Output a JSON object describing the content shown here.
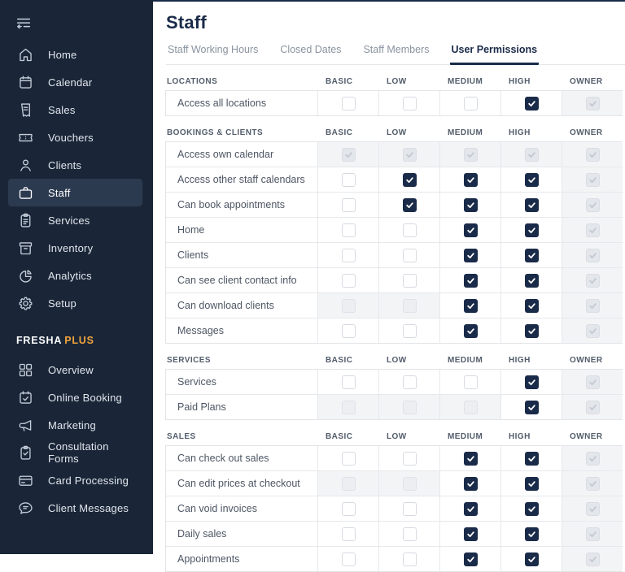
{
  "page_title": "Staff",
  "colors": {
    "sidebar_bg": "#1A2638",
    "sidebar_active_bg": "#2C3A50",
    "accent_navy": "#1A2B49",
    "plus_orange": "#F0A43C",
    "border_grey": "#E2E4E8",
    "disabled_cell_bg": "#F3F4F6"
  },
  "sidebar": {
    "collapse_icon": "collapse-sidebar-icon",
    "brand": {
      "name": "FRESHA",
      "suffix": "PLUS"
    },
    "main_items": [
      {
        "label": "Home",
        "icon": "home-icon",
        "active": false
      },
      {
        "label": "Calendar",
        "icon": "calendar-icon",
        "active": false
      },
      {
        "label": "Sales",
        "icon": "receipt-icon",
        "active": false
      },
      {
        "label": "Vouchers",
        "icon": "ticket-icon",
        "active": false
      },
      {
        "label": "Clients",
        "icon": "person-icon",
        "active": false
      },
      {
        "label": "Staff",
        "icon": "briefcase-icon",
        "active": true
      },
      {
        "label": "Services",
        "icon": "clipboard-list-icon",
        "active": false
      },
      {
        "label": "Inventory",
        "icon": "archive-box-icon",
        "active": false
      },
      {
        "label": "Analytics",
        "icon": "pie-chart-icon",
        "active": false
      },
      {
        "label": "Setup",
        "icon": "gear-icon",
        "active": false
      }
    ],
    "plus_items": [
      {
        "label": "Overview",
        "icon": "grid-icon",
        "active": false
      },
      {
        "label": "Online Booking",
        "icon": "calendar-check-icon",
        "active": false
      },
      {
        "label": "Marketing",
        "icon": "megaphone-icon",
        "active": false
      },
      {
        "label": "Consultation Forms",
        "icon": "clipboard-check-icon",
        "active": false
      },
      {
        "label": "Card Processing",
        "icon": "credit-card-icon",
        "active": false
      },
      {
        "label": "Client Messages",
        "icon": "chat-bubble-icon",
        "active": false
      }
    ]
  },
  "tabs": [
    {
      "label": "Staff Working Hours",
      "active": false
    },
    {
      "label": "Closed Dates",
      "active": false
    },
    {
      "label": "Staff Members",
      "active": false
    },
    {
      "label": "User Permissions",
      "active": true
    }
  ],
  "permission_levels": [
    "BASIC",
    "LOW",
    "MEDIUM",
    "HIGH",
    "OWNER"
  ],
  "sections": [
    {
      "title": "LOCATIONS",
      "rows": [
        {
          "label": "Access all locations",
          "states": [
            "unchecked",
            "unchecked",
            "unchecked",
            "checked",
            "disabled-checked"
          ]
        }
      ]
    },
    {
      "title": "BOOKINGS & CLIENTS",
      "rows": [
        {
          "label": "Access own calendar",
          "states": [
            "disabled-checked",
            "disabled-checked",
            "disabled-checked",
            "disabled-checked",
            "disabled-checked"
          ]
        },
        {
          "label": "Access other staff calendars",
          "states": [
            "unchecked",
            "checked",
            "checked",
            "checked",
            "disabled-checked"
          ]
        },
        {
          "label": "Can book appointments",
          "states": [
            "unchecked",
            "checked",
            "checked",
            "checked",
            "disabled-checked"
          ]
        },
        {
          "label": "Home",
          "states": [
            "unchecked",
            "unchecked",
            "checked",
            "checked",
            "disabled-checked"
          ]
        },
        {
          "label": "Clients",
          "states": [
            "unchecked",
            "unchecked",
            "checked",
            "checked",
            "disabled-checked"
          ]
        },
        {
          "label": "Can see client contact info",
          "states": [
            "unchecked",
            "unchecked",
            "checked",
            "checked",
            "disabled-checked"
          ]
        },
        {
          "label": "Can download clients",
          "states": [
            "disabled-unchecked",
            "disabled-unchecked",
            "checked",
            "checked",
            "disabled-checked"
          ]
        },
        {
          "label": "Messages",
          "states": [
            "unchecked",
            "unchecked",
            "checked",
            "checked",
            "disabled-checked"
          ]
        }
      ]
    },
    {
      "title": "SERVICES",
      "rows": [
        {
          "label": "Services",
          "states": [
            "unchecked",
            "unchecked",
            "unchecked",
            "checked",
            "disabled-checked"
          ]
        },
        {
          "label": "Paid Plans",
          "states": [
            "disabled-unchecked",
            "disabled-unchecked",
            "disabled-unchecked",
            "checked",
            "disabled-checked"
          ]
        }
      ]
    },
    {
      "title": "SALES",
      "rows": [
        {
          "label": "Can check out sales",
          "states": [
            "unchecked",
            "unchecked",
            "checked",
            "checked",
            "disabled-checked"
          ]
        },
        {
          "label": "Can edit prices at checkout",
          "states": [
            "disabled-unchecked",
            "disabled-unchecked",
            "checked",
            "checked",
            "disabled-checked"
          ]
        },
        {
          "label": "Can void invoices",
          "states": [
            "unchecked",
            "unchecked",
            "checked",
            "checked",
            "disabled-checked"
          ]
        },
        {
          "label": "Daily sales",
          "states": [
            "unchecked",
            "unchecked",
            "checked",
            "checked",
            "disabled-checked"
          ]
        },
        {
          "label": "Appointments",
          "states": [
            "unchecked",
            "unchecked",
            "checked",
            "checked",
            "disabled-checked"
          ]
        }
      ]
    }
  ]
}
